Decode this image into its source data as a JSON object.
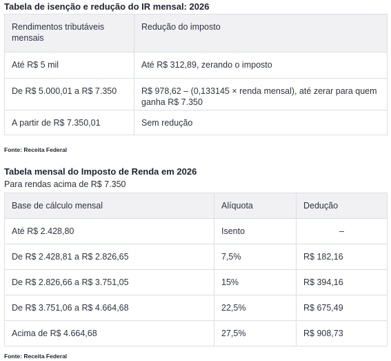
{
  "table1": {
    "title": "Tabela de isenção e redução do IR mensal: 2026",
    "headers": [
      "Rendimentos tributáveis mensais",
      "Redução do imposto"
    ],
    "rows": [
      [
        "Até R$ 5 mil",
        "Até R$ 312,89, zerando o imposto"
      ],
      [
        "De R$ 5.000,01 a R$ 7.350",
        "R$ 978,62 – (0,133145 × renda mensal), até zerar para quem ganha R$ 7.350"
      ],
      [
        "A partir de R$ 7.350,01",
        "Sem redução"
      ]
    ],
    "source": "Fonte: Receita Federal"
  },
  "table2": {
    "title": "Tabela mensal do Imposto de Renda em 2026",
    "subtitle": "Para rendas acima de R$ 7.350",
    "headers": [
      "Base de cálculo mensal",
      "Alíquota",
      "Dedução"
    ],
    "rows": [
      [
        "Até R$ 2.428,80",
        "Isento",
        "–"
      ],
      [
        "De R$ 2.428,81 a R$ 2.826,65",
        "7,5%",
        "R$ 182,16"
      ],
      [
        "De R$ 2.826,66 a R$ 3.751,05",
        "15%",
        "R$ 394,16"
      ],
      [
        "De R$ 3.751,06 a R$ 4.664,68",
        "22,5%",
        "R$ 675,49"
      ],
      [
        "Acima de R$ 4.664,68",
        "27,5%",
        "R$ 908,73"
      ]
    ],
    "source": "Fonte: Receita Federal"
  },
  "colors": {
    "header_bg": "#f1f1f4",
    "border": "#dcdde3",
    "text": "#2f3240"
  }
}
